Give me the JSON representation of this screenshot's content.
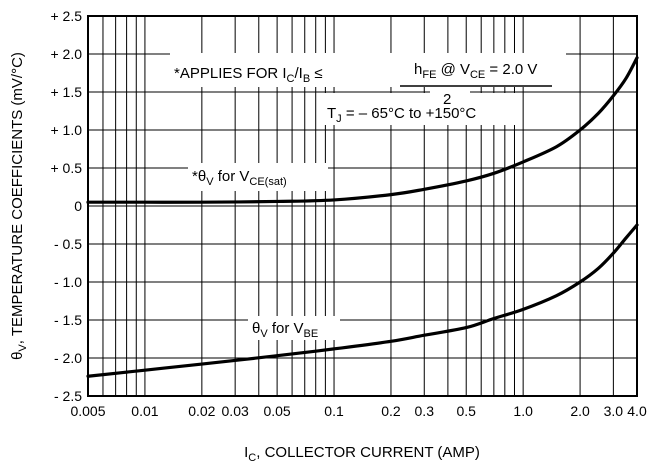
{
  "chart_data": {
    "type": "line",
    "x_scale": "log",
    "xlim": [
      0.005,
      4.0
    ],
    "ylim": [
      -2.5,
      2.5
    ],
    "grid": true,
    "x_ticks": [
      {
        "v": 0.005,
        "label": "0.005"
      },
      {
        "v": 0.01,
        "label": "0.01"
      },
      {
        "v": 0.02,
        "label": "0.02"
      },
      {
        "v": 0.03,
        "label": "0.03"
      },
      {
        "v": 0.05,
        "label": "0.05"
      },
      {
        "v": 0.1,
        "label": "0.1"
      },
      {
        "v": 0.2,
        "label": "0.2"
      },
      {
        "v": 0.3,
        "label": "0.3"
      },
      {
        "v": 0.5,
        "label": "0.5"
      },
      {
        "v": 1.0,
        "label": "1.0"
      },
      {
        "v": 2.0,
        "label": "2.0"
      },
      {
        "v": 3.0,
        "label": "3.0"
      },
      {
        "v": 4.0,
        "label": "4.0"
      }
    ],
    "y_ticks": [
      {
        "v": 2.5,
        "label": "+ 2.5"
      },
      {
        "v": 2.0,
        "label": "+ 2.0"
      },
      {
        "v": 1.5,
        "label": "+ 1.5"
      },
      {
        "v": 1.0,
        "label": "+ 1.0"
      },
      {
        "v": 0.5,
        "label": "+ 0.5"
      },
      {
        "v": 0,
        "label": "0"
      },
      {
        "v": -0.5,
        "label": "- 0.5"
      },
      {
        "v": -1.0,
        "label": "- 1.0"
      },
      {
        "v": -1.5,
        "label": "- 1.5"
      },
      {
        "v": -2.0,
        "label": "- 2.0"
      },
      {
        "v": -2.5,
        "label": "- 2.5"
      }
    ],
    "xlabel": {
      "pre": "I",
      "sub": "C",
      "post": ", COLLECTOR CURRENT (AMP)"
    },
    "ylabel": {
      "pre": "θ",
      "sub": "V",
      "post": ", TEMPERATURE COEFFICIENTS (mV/°C)"
    },
    "series": [
      {
        "label_pre": "*θ",
        "label_sub1": "V",
        "label_mid": " for V",
        "label_sub2": "CE(sat)",
        "x": [
          0.005,
          0.01,
          0.02,
          0.05,
          0.1,
          0.2,
          0.3,
          0.5,
          0.7,
          1.0,
          1.5,
          2.0,
          2.5,
          3.0,
          3.5,
          4.0
        ],
        "y": [
          0.05,
          0.05,
          0.05,
          0.06,
          0.08,
          0.15,
          0.22,
          0.33,
          0.43,
          0.58,
          0.78,
          1.0,
          1.22,
          1.45,
          1.68,
          1.95
        ]
      },
      {
        "label_pre": "θ",
        "label_sub1": "V",
        "label_mid": " for V",
        "label_sub2": "BE",
        "x": [
          0.005,
          0.01,
          0.02,
          0.05,
          0.1,
          0.2,
          0.3,
          0.5,
          0.7,
          1.0,
          1.5,
          2.0,
          2.5,
          3.0,
          3.5,
          4.0
        ],
        "y": [
          -2.24,
          -2.16,
          -2.08,
          -1.97,
          -1.88,
          -1.78,
          -1.7,
          -1.6,
          -1.48,
          -1.36,
          -1.18,
          -1.0,
          -0.82,
          -0.62,
          -0.42,
          -0.25
        ]
      }
    ],
    "annotation": {
      "prefix": "*APPLIES FOR I",
      "sub_ic": "C",
      "slash": "/I",
      "sub_ib": "B",
      "leq": " ≤",
      "num_h": "h",
      "num_fe": "FE",
      "num_at": " @ V",
      "num_ce": "CE",
      "num_eq": "  =   2.0 V",
      "denominator": "2",
      "tj_pre": "T",
      "tj_sub": "J",
      "tj_post": " = – 65°C to +150°C"
    }
  }
}
